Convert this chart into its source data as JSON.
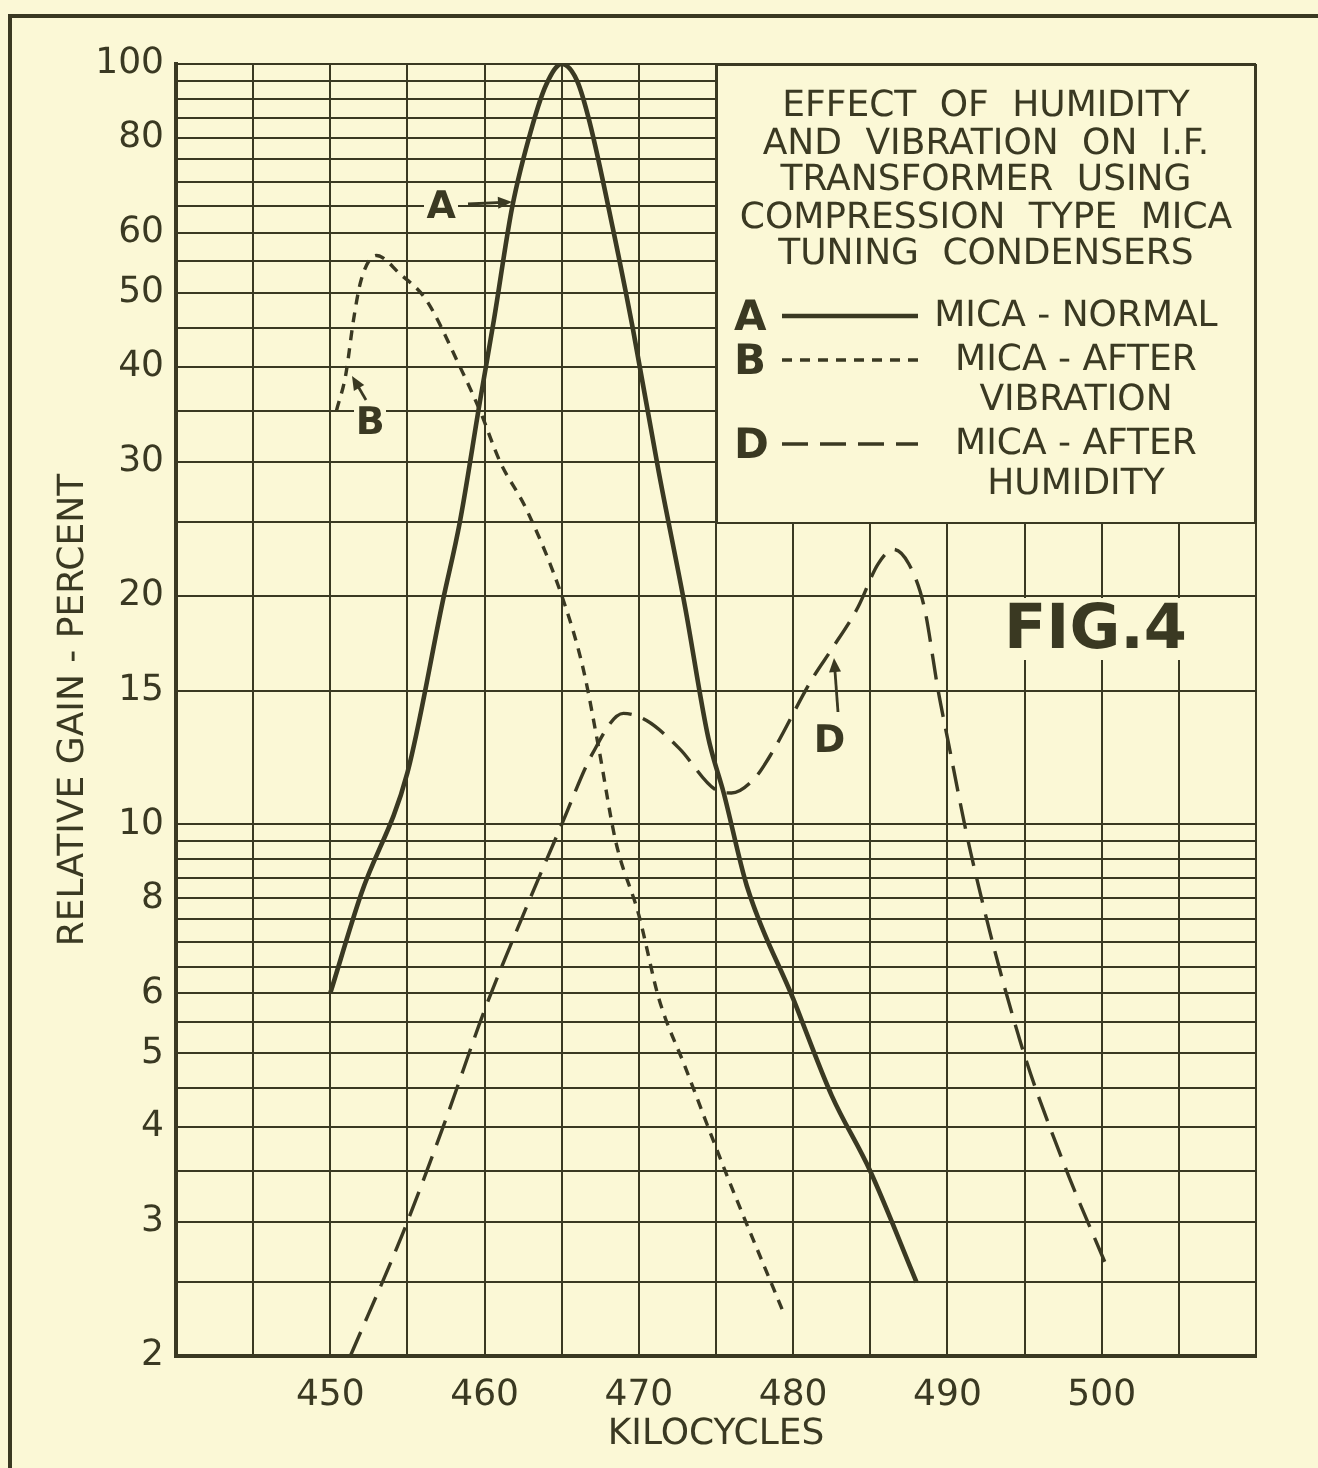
{
  "chart_data": {
    "type": "line",
    "title": "EFFECT OF HUMIDITY AND VIBRATION ON I.F. TRANSFORMER USING COMPRESSION TYPE MICA TUNING CONDENSERS",
    "xlabel": "KILOCYCLES",
    "ylabel": "RELATIVE GAIN - PERCENT",
    "annotations": [
      {
        "text": "A",
        "x": 462,
        "y": 66
      },
      {
        "text": "B",
        "x": 451,
        "y": 39
      },
      {
        "text": "D",
        "x": 482.5,
        "y": 17
      },
      "FIG.4"
    ],
    "series": [
      {
        "name": "MICA - NORMAL",
        "color": "#3a3922",
        "line_style": "solid",
        "x": [
          450,
          452,
          455,
          457.3,
          458.4,
          459.7,
          460.6,
          461.8,
          463.1,
          464,
          465,
          466,
          466.8,
          468.3,
          469.6,
          471.3,
          473,
          474.5,
          475.5,
          477,
          480,
          482.5,
          485,
          488
        ],
        "values": [
          6,
          8.1,
          11.7,
          19.7,
          25,
          36,
          46,
          65,
          83,
          94,
          100,
          95,
          84,
          61,
          45,
          29,
          19.3,
          13,
          11,
          8.3,
          5.9,
          4.4,
          3.5,
          2.5
        ]
      },
      {
        "name": "MICA - AFTER VIBRATION",
        "color": "#3a3922",
        "line_style": "dashed",
        "x": [
          450.4,
          451,
          451.5,
          452,
          453,
          454.5,
          456.2,
          458.4,
          459.7,
          461,
          462.7,
          465,
          466.4,
          467.4,
          468.5,
          470,
          471.3,
          473,
          475.6,
          479.3
        ],
        "values": [
          35,
          39,
          46,
          52,
          56,
          53,
          49,
          40,
          35,
          30,
          26,
          20,
          16,
          12.6,
          9.5,
          7.6,
          5.9,
          4.8,
          3.5,
          2.3
        ]
      },
      {
        "name": "MICA - AFTER HUMIDITY",
        "color": "#3a3922",
        "line_style": "dashed",
        "x": [
          451.3,
          454.7,
          457.5,
          460,
          462.5,
          465,
          467,
          469,
          470.5,
          472.6,
          475,
          476,
          477.5,
          478.6,
          481.2,
          482.5,
          484.2,
          485.5,
          486.5,
          487.5,
          488.5,
          489.4,
          490,
          491.5,
          494.7,
          497.5,
          500.4
        ],
        "values": [
          2,
          2.9,
          4.1,
          5.7,
          7.6,
          10,
          12.4,
          14,
          13.7,
          12.6,
          11.1,
          11,
          11.5,
          12.4,
          15.5,
          17,
          19.3,
          22,
          23,
          22,
          19.3,
          15,
          13,
          9.2,
          5.2,
          3.6,
          2.6
        ]
      }
    ],
    "xlim": [
      440,
      510
    ],
    "xticks": [
      {
        "value": 440,
        "label": null
      },
      {
        "value": 445,
        "label": null
      },
      450,
      {
        "value": 455,
        "label": null
      },
      460,
      {
        "value": 465,
        "label": null
      },
      470,
      {
        "value": 475,
        "label": null
      },
      480,
      {
        "value": 485,
        "label": null
      },
      490,
      {
        "value": 495,
        "label": null
      },
      500,
      {
        "value": 505,
        "label": null
      },
      {
        "value": 510,
        "label": null
      }
    ],
    "ylim": [
      2,
      100
    ],
    "yticks": [
      2,
      {
        "value": 2.5,
        "label": null
      },
      3,
      {
        "value": 3.5,
        "label": null
      },
      4,
      {
        "value": 4.5,
        "label": null
      },
      5,
      {
        "value": 5.5,
        "label": null
      },
      6,
      {
        "value": 6.5,
        "label": null
      },
      {
        "value": 7,
        "label": null
      },
      {
        "value": 7.5,
        "label": null
      },
      8,
      {
        "value": 8.5,
        "label": null
      },
      {
        "value": 9,
        "label": null
      },
      {
        "value": 9.5,
        "label": null
      },
      10,
      15,
      20,
      {
        "value": 25,
        "label": null
      },
      30,
      {
        "value": 35,
        "label": null
      },
      40,
      {
        "value": 45,
        "label": null
      },
      50,
      {
        "value": 55,
        "label": null
      },
      60,
      {
        "value": 65,
        "label": null
      },
      {
        "value": 70,
        "label": null
      },
      {
        "value": 75,
        "label": null
      },
      80,
      {
        "value": 85,
        "label": null
      },
      {
        "value": 90,
        "label": null
      },
      {
        "value": 95,
        "label": null
      },
      100
    ],
    "log": "y",
    "grid": true,
    "legend": "top right"
  }
}
